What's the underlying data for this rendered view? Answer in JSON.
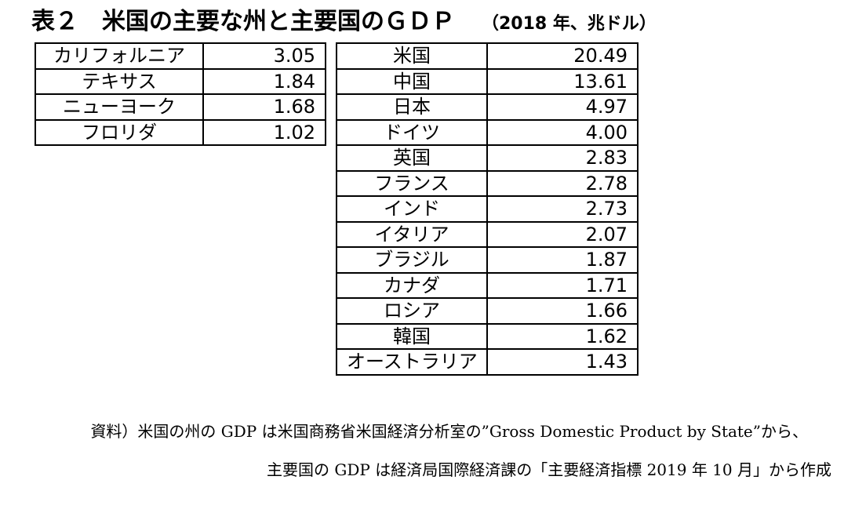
{
  "title": {
    "main": "表２　米国の主要な州と主要国のＧＤＰ",
    "unit": "（2018 年、兆ドル）"
  },
  "states": [
    {
      "name": "カリフォルニア",
      "gdp": "3.05"
    },
    {
      "name": "テキサス",
      "gdp": "1.84"
    },
    {
      "name": "ニューヨーク",
      "gdp": "1.68"
    },
    {
      "name": "フロリダ",
      "gdp": "1.02"
    }
  ],
  "countries": [
    {
      "name": "米国",
      "gdp": "20.49"
    },
    {
      "name": "中国",
      "gdp": "13.61"
    },
    {
      "name": "日本",
      "gdp": "4.97"
    },
    {
      "name": "ドイツ",
      "gdp": "4.00"
    },
    {
      "name": "英国",
      "gdp": "2.83"
    },
    {
      "name": "フランス",
      "gdp": "2.78"
    },
    {
      "name": "インド",
      "gdp": "2.73"
    },
    {
      "name": "イタリア",
      "gdp": "2.07"
    },
    {
      "name": "ブラジル",
      "gdp": "1.87"
    },
    {
      "name": "カナダ",
      "gdp": "1.71"
    },
    {
      "name": "ロシア",
      "gdp": "1.66"
    },
    {
      "name": "韓国",
      "gdp": "1.62"
    },
    {
      "name": "オーストラリア",
      "gdp": "1.43"
    }
  ],
  "source": {
    "line1": "資料）米国の州の GDP は米国商務省米国経済分析室の”Gross Domestic Product by State”から、",
    "line2": "主要国の GDP は経済局国際経済課の「主要経済指標 2019 年 10 月」から作成"
  }
}
